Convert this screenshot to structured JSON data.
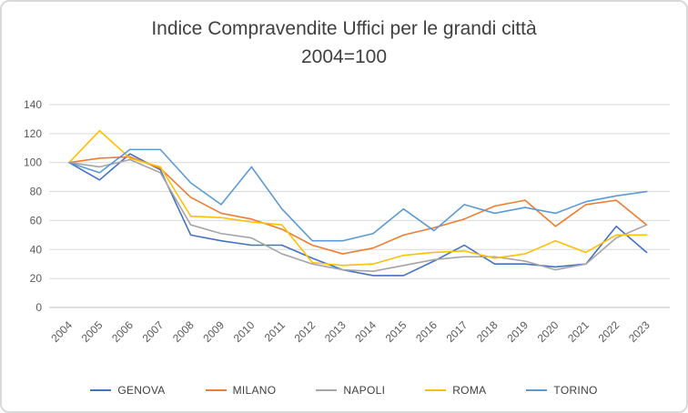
{
  "chart_data": {
    "type": "line",
    "title": "Indice Compravendite Uffici per le grandi città",
    "subtitle": "2004=100",
    "x": [
      2004,
      2005,
      2006,
      2007,
      2008,
      2009,
      2010,
      2011,
      2012,
      2013,
      2014,
      2015,
      2016,
      2017,
      2018,
      2019,
      2020,
      2021,
      2022,
      2023
    ],
    "series": [
      {
        "name": "GENOVA",
        "color": "#4472C4",
        "values": [
          100,
          88,
          106,
          95,
          50,
          46,
          43,
          43,
          34,
          26,
          22,
          22,
          32,
          43,
          30,
          30,
          28,
          30,
          56,
          38
        ]
      },
      {
        "name": "MILANO",
        "color": "#ED7D31",
        "values": [
          100,
          103,
          104,
          96,
          76,
          65,
          61,
          54,
          43,
          37,
          41,
          50,
          55,
          61,
          70,
          74,
          56,
          71,
          74,
          57
        ]
      },
      {
        "name": "NAPOLI",
        "color": "#A5A5A5",
        "values": [
          100,
          97,
          102,
          93,
          57,
          51,
          48,
          37,
          30,
          26,
          25,
          29,
          33,
          35,
          35,
          32,
          26,
          30,
          48,
          57
        ]
      },
      {
        "name": "ROMA",
        "color": "#FFC000",
        "values": [
          100,
          122,
          103,
          97,
          63,
          62,
          59,
          57,
          31,
          29,
          30,
          36,
          38,
          39,
          34,
          37,
          46,
          38,
          50,
          50
        ]
      },
      {
        "name": "TORINO",
        "color": "#5B9BD5",
        "values": [
          100,
          93,
          109,
          109,
          86,
          71,
          97,
          68,
          46,
          46,
          51,
          68,
          53,
          71,
          65,
          69,
          65,
          73,
          77,
          80
        ]
      }
    ],
    "ylim": [
      0,
      140
    ],
    "yticks": [
      0,
      20,
      40,
      60,
      80,
      100,
      120,
      140
    ],
    "grid": true,
    "legend_position": "bottom",
    "xlabel": "",
    "ylabel": ""
  },
  "colors": {
    "grid": "#D9D9D9",
    "axis": "#BFBFBF",
    "tick_text": "#595959",
    "title_text": "#404040",
    "frame_border": "#D9D9D9",
    "background": "#FFFFFF"
  }
}
